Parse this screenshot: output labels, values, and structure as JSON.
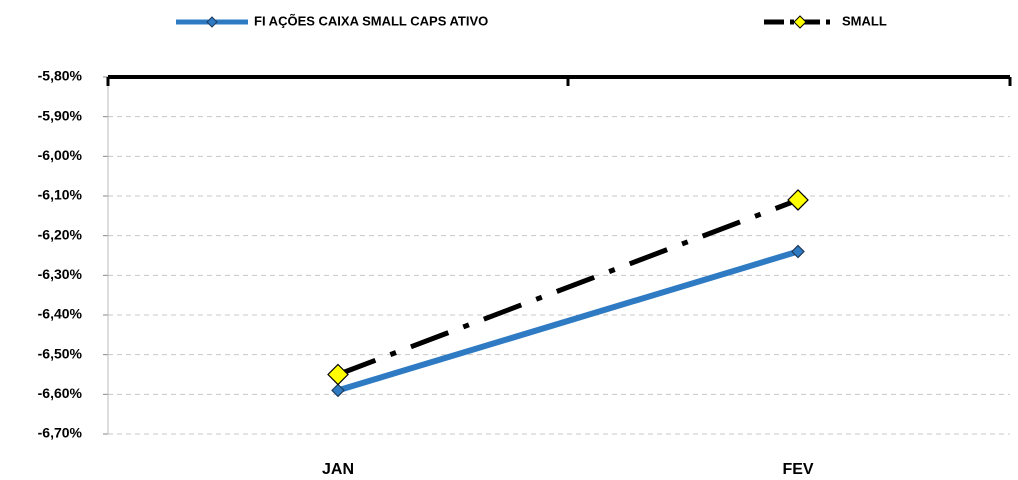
{
  "chart_data": {
    "type": "line",
    "categories": [
      "JAN",
      "FEV"
    ],
    "series": [
      {
        "name": "FI AÇÕES CAIXA SMALL CAPS ATIVO",
        "color": "#2e7bc4",
        "marker_color": "#2e7bc4",
        "line_style": "solid",
        "values": [
          -6.59,
          -6.24
        ]
      },
      {
        "name": "SMALL",
        "color": "#000000",
        "marker_color": "#ffff00",
        "line_style": "dash-dot",
        "values": [
          -6.55,
          -6.11
        ]
      }
    ],
    "ylim": [
      -6.7,
      -5.8
    ],
    "yticks": [
      {
        "value": -5.8,
        "label": "-5,80%"
      },
      {
        "value": -5.9,
        "label": "-5,90%"
      },
      {
        "value": -6.0,
        "label": "-6,00%"
      },
      {
        "value": -6.1,
        "label": "-6,10%"
      },
      {
        "value": -6.2,
        "label": "-6,20%"
      },
      {
        "value": -6.3,
        "label": "-6,30%"
      },
      {
        "value": -6.4,
        "label": "-6,40%"
      },
      {
        "value": -6.5,
        "label": "-6,50%"
      },
      {
        "value": -6.6,
        "label": "-6,60%"
      },
      {
        "value": -6.7,
        "label": "-6,70%"
      }
    ],
    "grid": true,
    "legend": "top"
  }
}
